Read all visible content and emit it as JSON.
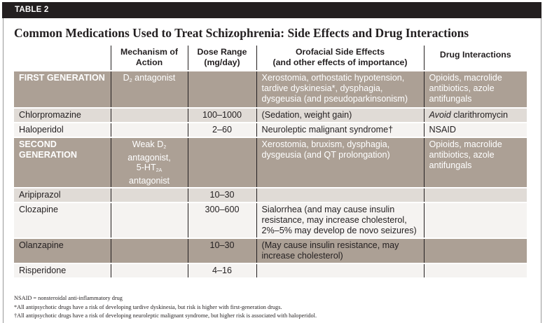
{
  "table_label": "TABLE 2",
  "title": "Common Medications Used to Treat Schizophrenia: Side Effects and Drug Interactions",
  "headers": {
    "mechanism": "Mechanism of Action",
    "dose": "Dose Range (mg/day)",
    "side_effects": "Orofacial Side Effects",
    "side_effects_sub": "(and other effects of importance)",
    "interactions": "Drug Interactions"
  },
  "rows": [
    {
      "name": "FIRST GENERATION",
      "mech_pre": "D",
      "mech_sub": "2",
      "mech_post": " antagonist",
      "dose": "",
      "effects": "Xerostomia, orthostatic hypotension, tardive dyskinesia*, dysphagia, dysgeusia (and pseudoparkinsonism)",
      "interactions": "Opioids, macrolide antibiotics, azole antifungals"
    },
    {
      "name": "Chlorpromazine",
      "dose": "100–1000",
      "effects": "(Sedation, weight gain)",
      "interactions_em": "Avoid",
      "interactions": " clarithromycin"
    },
    {
      "name": "Haloperidol",
      "dose": "2–60",
      "effects": "Neuroleptic malignant syndrome†",
      "interactions": "NSAID"
    },
    {
      "name": "SECOND GENERATION",
      "mech_a": "Weak D",
      "mech_a_sub": "2",
      "mech_b": "antagonist,",
      "mech_c": "5-HT",
      "mech_c_sub": "2A",
      "mech_d": "antagonist",
      "dose": "",
      "effects": "Xerostomia, bruxism, dysphagia, dysgeusia (and QT prolongation)",
      "interactions": "Opioids, macrolide antibiotics, azole antifungals"
    },
    {
      "name": "Aripiprazol",
      "dose": "10–30",
      "effects": "",
      "interactions": ""
    },
    {
      "name": "Clozapine",
      "dose": "300–600",
      "effects": "Sialorrhea (and may cause insulin resistance, may increase cholesterol, 2%–5% may develop de novo seizures)",
      "interactions": ""
    },
    {
      "name": "Olanzapine",
      "dose": "10–30",
      "effects": "(May cause insulin resistance, may increase cholesterol)",
      "interactions": ""
    },
    {
      "name": "Risperidone",
      "dose": "4–16",
      "effects": "",
      "interactions": ""
    }
  ],
  "footnotes": [
    "NSAID = nonsteroidal anti-inflammatory drug",
    "*All antipsychotic drugs have a risk of developing tardive dyskinesia, but risk is higher with first-generation drugs.",
    "†All antipsychotic drugs have a risk of developing neuroleptic malignant syndrome, but higher risk is associated with haloperidol."
  ]
}
